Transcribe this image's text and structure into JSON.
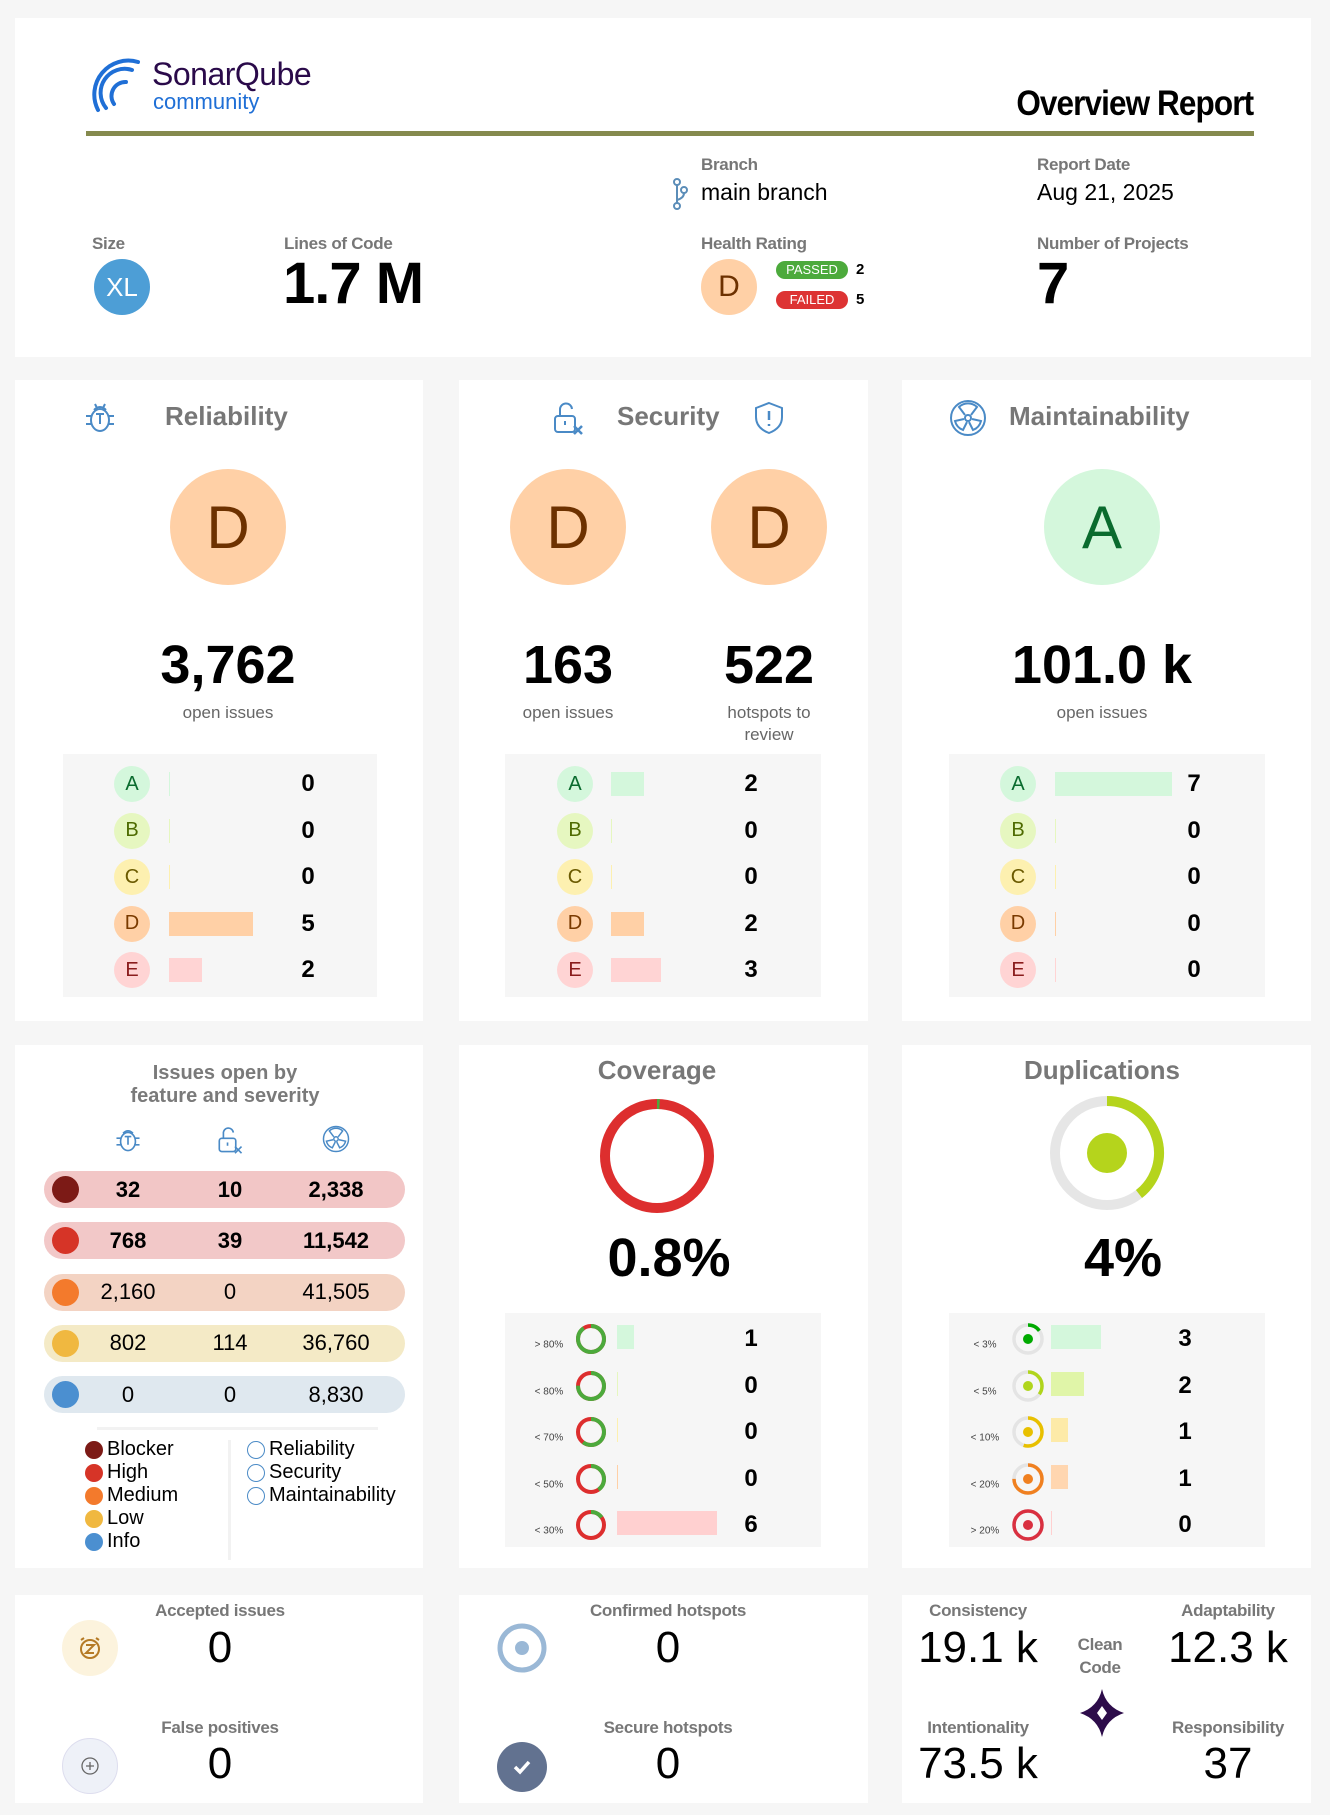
{
  "header": {
    "logo_text": "SonarQube",
    "logo_sub": "community",
    "title": "Overview Report",
    "branch_label": "Branch",
    "branch_value": "main branch",
    "report_date_label": "Report Date",
    "report_date_value": "Aug 21, 2025",
    "size_label": "Size",
    "size_value": "XL",
    "loc_label": "Lines of Code",
    "loc_value": "1.7 M",
    "health_label": "Health Rating",
    "health_value": "D",
    "passed_label": "PASSED",
    "passed_count": "2",
    "failed_label": "FAILED",
    "failed_count": "5",
    "projects_label": "Number of Projects",
    "projects_value": "7"
  },
  "colors": {
    "olive_rule": "#858a4e",
    "size_badge": "#4d9ed6",
    "passed": "#4caa3c",
    "failed": "#dd3333",
    "rating_A": "#d4f7dc",
    "rating_B": "#e6f7c0",
    "rating_C": "#fdf0b0",
    "rating_D": "#ffd0a6",
    "rating_E": "#ffd4d4"
  },
  "reliability": {
    "title": "Reliability",
    "rating": "D",
    "count": "3,762",
    "count_label": "open issues",
    "distribution": [
      [
        "A",
        0
      ],
      [
        "B",
        0
      ],
      [
        "C",
        0
      ],
      [
        "D",
        5
      ],
      [
        "E",
        2
      ]
    ]
  },
  "security": {
    "title": "Security",
    "rating": "D",
    "count": "163",
    "count_label": "open issues",
    "hotspot_rating": "D",
    "hotspot_count": "522",
    "hotspot_label": "hotspots to review",
    "distribution": [
      [
        "A",
        2
      ],
      [
        "B",
        0
      ],
      [
        "C",
        0
      ],
      [
        "D",
        2
      ],
      [
        "E",
        3
      ]
    ]
  },
  "maintainability": {
    "title": "Maintainability",
    "rating": "A",
    "count": "101.0 k",
    "count_label": "open issues",
    "distribution": [
      [
        "A",
        7
      ],
      [
        "B",
        0
      ],
      [
        "C",
        0
      ],
      [
        "D",
        0
      ],
      [
        "E",
        0
      ]
    ]
  },
  "severity": {
    "title_line1": "Issues open by",
    "title_line2": "feature and severity",
    "rows": [
      {
        "name": "Blocker",
        "values": [
          "32",
          "10",
          "2,338"
        ],
        "bg": "#f2c6c6",
        "color": "#7c1a16",
        "bold": true
      },
      {
        "name": "High",
        "values": [
          "768",
          "39",
          "11,542"
        ],
        "bg": "#f2c8c8",
        "color": "#d63427",
        "bold": true
      },
      {
        "name": "Medium",
        "values": [
          "2,160",
          "0",
          "41,505"
        ],
        "bg": "#f3d3c3",
        "color": "#f37a2c",
        "bold": false
      },
      {
        "name": "Low",
        "values": [
          "802",
          "114",
          "36,760"
        ],
        "bg": "#f4eac6",
        "color": "#f0b840",
        "bold": false
      },
      {
        "name": "Info",
        "values": [
          "0",
          "0",
          "8,830"
        ],
        "bg": "#dfe8ef",
        "color": "#4b8fd0",
        "bold": false
      }
    ],
    "legend_types": [
      "Reliability",
      "Security",
      "Maintainability"
    ]
  },
  "coverage": {
    "title": "Coverage",
    "value": "0.8%",
    "value_fraction": 0.008,
    "rows": [
      {
        "label": "> 80%",
        "count": 1,
        "ring_fill": 0.9,
        "bar": "#d4f7dc"
      },
      {
        "label": "< 80%",
        "count": 0,
        "ring_fill": 0.75,
        "bar": "#e6f7c0"
      },
      {
        "label": "< 70%",
        "count": 0,
        "ring_fill": 0.6,
        "bar": "#fdf0b0"
      },
      {
        "label": "< 50%",
        "count": 0,
        "ring_fill": 0.4,
        "bar": "#ffd0a6"
      },
      {
        "label": "< 30%",
        "count": 6,
        "ring_fill": 0.15,
        "bar": "#ffd0d0"
      }
    ]
  },
  "duplications": {
    "title": "Duplications",
    "value": "4%",
    "rows": [
      {
        "label": "< 3%",
        "count": 3,
        "color": "#00aa00",
        "bar": "#d4f7dc",
        "ring_fill": 0.15
      },
      {
        "label": "< 5%",
        "count": 2,
        "color": "#b0d51c",
        "bar": "#e0f5a8",
        "ring_fill": 0.35
      },
      {
        "label": "< 10%",
        "count": 1,
        "color": "#e8c000",
        "bar": "#fdeaa8",
        "ring_fill": 0.55
      },
      {
        "label": "< 20%",
        "count": 1,
        "color": "#f08020",
        "bar": "#ffd6b0",
        "ring_fill": 0.75
      },
      {
        "label": "> 20%",
        "count": 0,
        "color": "#d93040",
        "bar": "#ffd0d0",
        "ring_fill": 1
      }
    ]
  },
  "bottom": {
    "accepted_label": "Accepted issues",
    "accepted_value": "0",
    "false_pos_label": "False positives",
    "false_pos_value": "0",
    "confirmed_label": "Confirmed hotspots",
    "confirmed_value": "0",
    "secure_label": "Secure hotspots",
    "secure_value": "0",
    "consistency_label": "Consistency",
    "consistency_value": "19.1 k",
    "adaptability_label": "Adaptability",
    "adaptability_value": "12.3 k",
    "intentionality_label": "Intentionality",
    "intentionality_value": "73.5 k",
    "responsibility_label": "Responsibility",
    "responsibility_value": "37",
    "clean_code_label_1": "Clean",
    "clean_code_label_2": "Code"
  }
}
